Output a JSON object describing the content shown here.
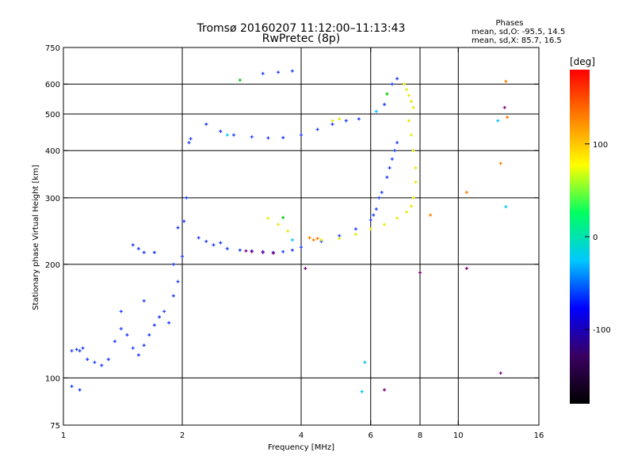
{
  "chart_data": {
    "type": "scatter",
    "title": "Tromsø 20160207 11:12:00–11:13:43",
    "subtitle": "RwPretec (8p)",
    "xlabel": "Frequency [MHz]",
    "ylabel": "Stationary phase Virtual Height [km]",
    "x_scale": "log",
    "y_scale": "log",
    "xlim": [
      1,
      16
    ],
    "ylim": [
      75,
      750
    ],
    "x_ticks": [
      1,
      2,
      4,
      6,
      8,
      10,
      16
    ],
    "y_ticks": [
      75,
      100,
      200,
      300,
      400,
      500,
      600,
      750
    ],
    "x_grid": [
      2,
      4,
      6,
      8,
      10
    ],
    "y_grid": [
      100,
      200,
      300,
      400,
      500,
      600
    ],
    "grid": true,
    "stats_header": "Phases",
    "stats_O": "mean, sd,O: -95.5, 14.5",
    "stats_X": "mean, sd,X: 85.7, 16.5",
    "colorbar": {
      "label": "[deg]",
      "ticks": [
        100,
        0,
        -100
      ],
      "range": [
        -180,
        180
      ],
      "colormap": [
        "#000000",
        "#3a0060",
        "#0000ff",
        "#00c8ff",
        "#00ff60",
        "#ffff00",
        "#ff8000",
        "#ff0000"
      ]
    },
    "series": [
      {
        "color": "#1f3fff",
        "phase": -100,
        "points": [
          [
            1.05,
            118
          ],
          [
            1.08,
            119
          ],
          [
            1.1,
            118
          ],
          [
            1.12,
            120
          ],
          [
            1.15,
            112
          ],
          [
            1.2,
            110
          ],
          [
            1.25,
            108
          ],
          [
            1.3,
            112
          ],
          [
            1.35,
            125
          ],
          [
            1.4,
            135
          ],
          [
            1.45,
            130
          ],
          [
            1.5,
            120
          ],
          [
            1.55,
            115
          ],
          [
            1.6,
            122
          ],
          [
            1.65,
            130
          ],
          [
            1.7,
            138
          ],
          [
            1.75,
            145
          ],
          [
            1.8,
            150
          ],
          [
            1.85,
            140
          ],
          [
            1.9,
            165
          ],
          [
            1.95,
            180
          ],
          [
            2.0,
            210
          ],
          [
            2.02,
            260
          ],
          [
            2.05,
            300
          ],
          [
            2.08,
            420
          ],
          [
            2.1,
            430
          ],
          [
            1.5,
            225
          ],
          [
            1.55,
            220
          ],
          [
            1.6,
            215
          ],
          [
            1.7,
            215
          ],
          [
            2.2,
            235
          ],
          [
            2.4,
            225
          ],
          [
            2.6,
            220
          ],
          [
            2.8,
            218
          ],
          [
            3.0,
            217
          ],
          [
            3.2,
            216
          ],
          [
            3.4,
            215
          ],
          [
            3.6,
            216
          ],
          [
            3.8,
            218
          ],
          [
            4.0,
            222
          ],
          [
            4.5,
            230
          ],
          [
            5.0,
            238
          ],
          [
            5.5,
            248
          ],
          [
            6.0,
            262
          ],
          [
            6.2,
            280
          ],
          [
            6.4,
            310
          ],
          [
            6.6,
            340
          ],
          [
            6.8,
            380
          ],
          [
            7.0,
            420
          ],
          [
            2.3,
            470
          ],
          [
            2.5,
            450
          ],
          [
            2.7,
            440
          ],
          [
            3.0,
            435
          ],
          [
            3.3,
            432
          ],
          [
            3.6,
            433
          ],
          [
            4.0,
            440
          ],
          [
            4.4,
            455
          ],
          [
            4.8,
            470
          ],
          [
            5.2,
            480
          ],
          [
            5.6,
            485
          ],
          [
            6.5,
            530
          ],
          [
            6.8,
            600
          ],
          [
            7.0,
            620
          ],
          [
            3.2,
            640
          ],
          [
            3.5,
            645
          ],
          [
            3.8,
            650
          ],
          [
            1.05,
            95
          ],
          [
            1.1,
            93
          ],
          [
            1.4,
            150
          ],
          [
            1.6,
            160
          ],
          [
            1.9,
            200
          ],
          [
            1.95,
            250
          ],
          [
            2.3,
            230
          ],
          [
            2.5,
            228
          ],
          [
            6.1,
            270
          ],
          [
            6.3,
            300
          ],
          [
            6.7,
            360
          ],
          [
            6.9,
            400
          ]
        ]
      },
      {
        "color": "#e8e800",
        "phase": 95,
        "points": [
          [
            7.3,
            600
          ],
          [
            7.4,
            580
          ],
          [
            7.5,
            560
          ],
          [
            7.6,
            540
          ],
          [
            7.7,
            520
          ],
          [
            7.5,
            480
          ],
          [
            7.6,
            440
          ],
          [
            7.7,
            400
          ],
          [
            7.8,
            360
          ],
          [
            7.8,
            330
          ],
          [
            7.7,
            300
          ],
          [
            7.6,
            285
          ],
          [
            7.4,
            275
          ],
          [
            7.0,
            265
          ],
          [
            6.5,
            255
          ],
          [
            6.0,
            248
          ],
          [
            5.5,
            240
          ],
          [
            5.0,
            234
          ],
          [
            4.5,
            232
          ],
          [
            3.3,
            265
          ],
          [
            3.5,
            255
          ],
          [
            3.7,
            245
          ],
          [
            4.8,
            480
          ],
          [
            5.0,
            485
          ]
        ]
      },
      {
        "color": "#ff7f00",
        "phase": 150,
        "points": [
          [
            4.2,
            235
          ],
          [
            4.3,
            232
          ],
          [
            4.4,
            234
          ],
          [
            5.8,
            110
          ],
          [
            13.2,
            610
          ],
          [
            13.3,
            490
          ],
          [
            12.8,
            370
          ],
          [
            10.5,
            310
          ],
          [
            8.5,
            270
          ]
        ]
      },
      {
        "color": "#7f007f",
        "phase": -140,
        "points": [
          [
            3.0,
            216
          ],
          [
            3.2,
            215
          ],
          [
            3.4,
            214
          ],
          [
            2.9,
            217
          ],
          [
            4.1,
            195
          ],
          [
            6.5,
            93
          ],
          [
            8.0,
            190
          ],
          [
            10.5,
            195
          ],
          [
            12.8,
            103
          ],
          [
            13.1,
            520
          ]
        ]
      },
      {
        "color": "#00c8ff",
        "phase": 20,
        "points": [
          [
            6.2,
            508
          ],
          [
            5.8,
            110
          ],
          [
            13.2,
            284
          ],
          [
            5.7,
            92
          ],
          [
            12.6,
            480
          ],
          [
            2.6,
            440
          ],
          [
            3.8,
            232
          ]
        ]
      },
      {
        "color": "#00c800",
        "phase": 50,
        "points": [
          [
            2.8,
            615
          ],
          [
            3.6,
            266
          ],
          [
            6.6,
            565
          ]
        ]
      }
    ]
  }
}
